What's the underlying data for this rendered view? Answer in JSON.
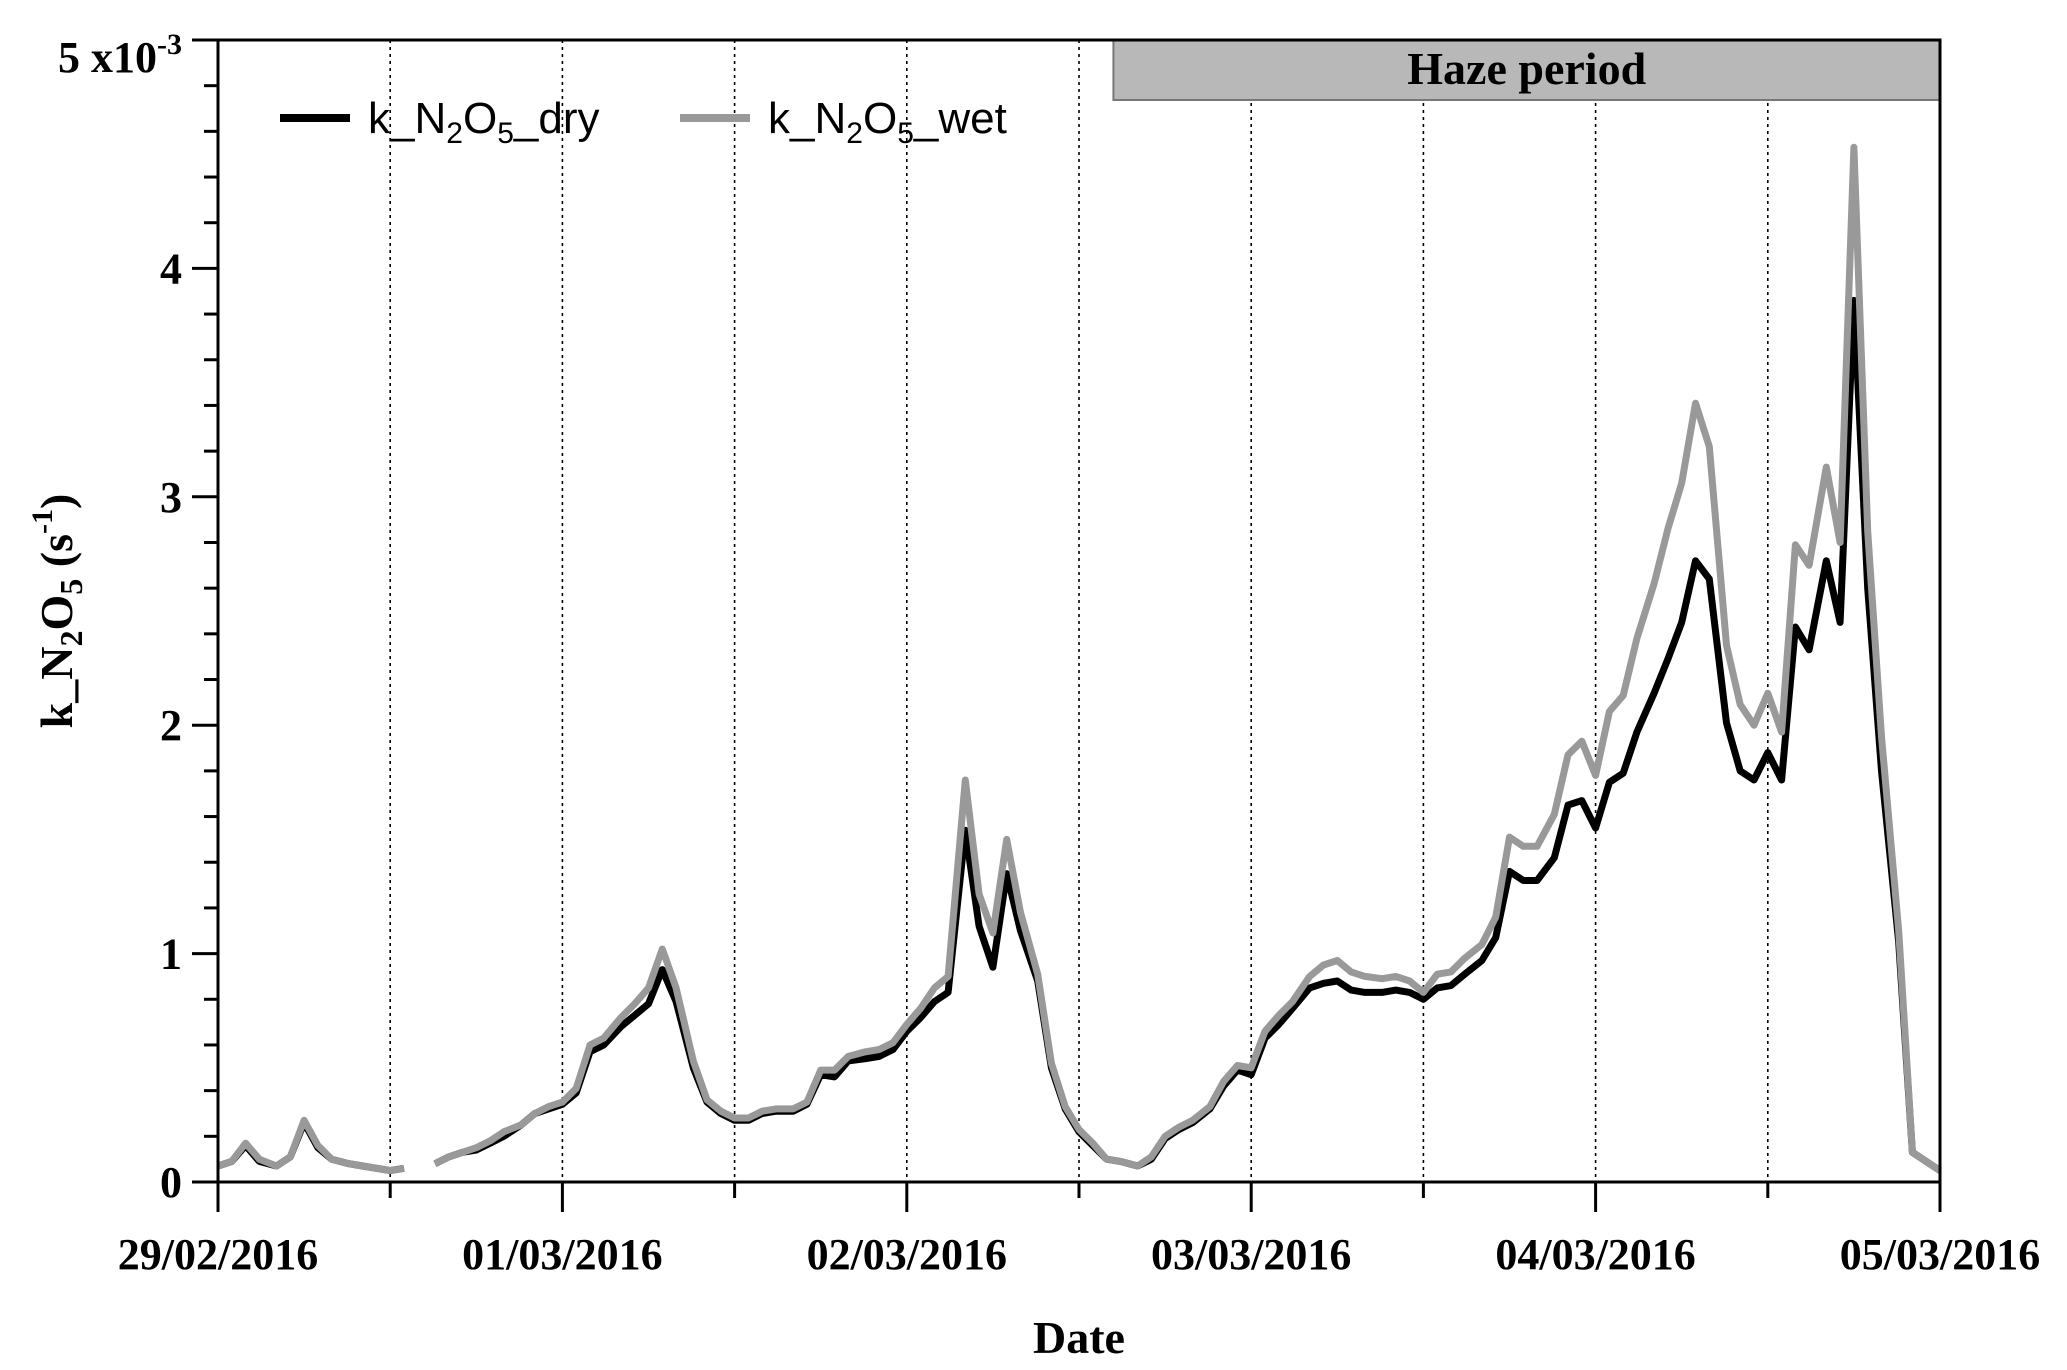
{
  "chart_data": {
    "type": "line",
    "title": "",
    "xlabel": "Date",
    "ylabel": "k_N2O5 (s-1)",
    "y_scale_label": "x10-3",
    "x_tick_labels": [
      "29/02/2016",
      "01/03/2016",
      "02/03/2016",
      "03/03/2016",
      "04/03/2016",
      "05/03/2016"
    ],
    "xlim_days": [
      0,
      5
    ],
    "y_ticks": [
      0,
      1,
      2,
      3,
      4,
      5
    ],
    "ylim": [
      0,
      5
    ],
    "grid": "dotted vertical lines every 12 hours",
    "legend_position": "top-left",
    "annotation": {
      "label": "Haze period",
      "start_day": 2.6,
      "end_day": 5.0
    },
    "series": [
      {
        "name": "k_N2O5_dry",
        "color": "#000000",
        "points": [
          [
            0.0,
            0.07
          ],
          [
            0.04,
            0.09
          ],
          [
            0.08,
            0.16
          ],
          [
            0.12,
            0.09
          ],
          [
            0.17,
            0.07
          ],
          [
            0.21,
            0.11
          ],
          [
            0.25,
            0.26
          ],
          [
            0.29,
            0.15
          ],
          [
            0.33,
            0.1
          ],
          [
            0.38,
            0.08
          ],
          [
            0.42,
            0.07
          ],
          [
            0.46,
            0.06
          ],
          [
            0.5,
            0.05
          ],
          [
            0.54,
            0.06
          ],
          null,
          [
            0.63,
            0.08
          ],
          [
            0.67,
            0.11
          ],
          [
            0.71,
            0.13
          ],
          [
            0.75,
            0.14
          ],
          [
            0.79,
            0.17
          ],
          [
            0.83,
            0.2
          ],
          [
            0.88,
            0.25
          ],
          [
            0.92,
            0.3
          ],
          [
            0.96,
            0.32
          ],
          [
            1.0,
            0.34
          ],
          [
            1.04,
            0.39
          ],
          [
            1.08,
            0.57
          ],
          [
            1.12,
            0.6
          ],
          [
            1.17,
            0.68
          ],
          [
            1.21,
            0.73
          ],
          [
            1.25,
            0.78
          ],
          [
            1.29,
            0.93
          ],
          [
            1.33,
            0.79
          ],
          [
            1.38,
            0.5
          ],
          [
            1.42,
            0.35
          ],
          [
            1.46,
            0.3
          ],
          [
            1.5,
            0.27
          ],
          [
            1.54,
            0.27
          ],
          [
            1.58,
            0.3
          ],
          [
            1.62,
            0.31
          ],
          [
            1.67,
            0.31
          ],
          [
            1.71,
            0.34
          ],
          [
            1.75,
            0.47
          ],
          [
            1.79,
            0.46
          ],
          [
            1.83,
            0.53
          ],
          [
            1.88,
            0.54
          ],
          [
            1.92,
            0.55
          ],
          [
            1.96,
            0.58
          ],
          [
            2.0,
            0.66
          ],
          [
            2.04,
            0.72
          ],
          [
            2.08,
            0.79
          ],
          [
            2.12,
            0.83
          ],
          [
            2.17,
            1.54
          ],
          [
            2.21,
            1.12
          ],
          [
            2.25,
            0.94
          ],
          [
            2.29,
            1.35
          ],
          [
            2.33,
            1.1
          ],
          [
            2.38,
            0.88
          ],
          [
            2.42,
            0.5
          ],
          [
            2.46,
            0.32
          ],
          [
            2.5,
            0.22
          ],
          [
            2.54,
            0.16
          ],
          [
            2.58,
            0.1
          ],
          [
            2.62,
            0.09
          ],
          [
            2.67,
            0.07
          ],
          [
            2.71,
            0.1
          ],
          [
            2.75,
            0.19
          ],
          [
            2.79,
            0.23
          ],
          [
            2.83,
            0.26
          ],
          [
            2.88,
            0.32
          ],
          [
            2.92,
            0.42
          ],
          [
            2.96,
            0.49
          ],
          [
            3.0,
            0.47
          ],
          [
            3.04,
            0.63
          ],
          [
            3.08,
            0.69
          ],
          [
            3.12,
            0.76
          ],
          [
            3.17,
            0.85
          ],
          [
            3.21,
            0.87
          ],
          [
            3.25,
            0.88
          ],
          [
            3.29,
            0.84
          ],
          [
            3.33,
            0.83
          ],
          [
            3.38,
            0.83
          ],
          [
            3.42,
            0.84
          ],
          [
            3.46,
            0.83
          ],
          [
            3.5,
            0.8
          ],
          [
            3.54,
            0.85
          ],
          [
            3.58,
            0.86
          ],
          [
            3.62,
            0.91
          ],
          [
            3.67,
            0.97
          ],
          [
            3.71,
            1.07
          ],
          [
            3.75,
            1.36
          ],
          [
            3.79,
            1.32
          ],
          [
            3.83,
            1.32
          ],
          [
            3.88,
            1.42
          ],
          [
            3.92,
            1.65
          ],
          [
            3.96,
            1.67
          ],
          [
            4.0,
            1.55
          ],
          [
            4.04,
            1.75
          ],
          [
            4.08,
            1.79
          ],
          [
            4.12,
            1.97
          ],
          [
            4.17,
            2.14
          ],
          [
            4.21,
            2.29
          ],
          [
            4.25,
            2.45
          ],
          [
            4.29,
            2.72
          ],
          [
            4.33,
            2.64
          ],
          [
            4.38,
            2.01
          ],
          [
            4.42,
            1.8
          ],
          [
            4.46,
            1.76
          ],
          [
            4.5,
            1.88
          ],
          [
            4.54,
            1.76
          ],
          [
            4.58,
            2.43
          ],
          [
            4.62,
            2.33
          ],
          [
            4.67,
            2.72
          ],
          [
            4.71,
            2.45
          ],
          [
            4.75,
            3.86
          ],
          [
            4.79,
            2.6
          ],
          [
            4.83,
            1.8
          ],
          [
            4.88,
            1.05
          ],
          [
            4.92,
            0.13
          ],
          [
            4.96,
            0.09
          ],
          [
            5.0,
            0.05
          ]
        ]
      },
      {
        "name": "k_N2O5_wet",
        "color": "#999999",
        "points": [
          [
            0.0,
            0.07
          ],
          [
            0.04,
            0.09
          ],
          [
            0.08,
            0.17
          ],
          [
            0.12,
            0.1
          ],
          [
            0.17,
            0.07
          ],
          [
            0.21,
            0.11
          ],
          [
            0.25,
            0.27
          ],
          [
            0.29,
            0.16
          ],
          [
            0.33,
            0.1
          ],
          [
            0.38,
            0.08
          ],
          [
            0.42,
            0.07
          ],
          [
            0.46,
            0.06
          ],
          [
            0.5,
            0.05
          ],
          [
            0.54,
            0.06
          ],
          null,
          [
            0.63,
            0.08
          ],
          [
            0.67,
            0.11
          ],
          [
            0.71,
            0.13
          ],
          [
            0.75,
            0.15
          ],
          [
            0.79,
            0.18
          ],
          [
            0.83,
            0.22
          ],
          [
            0.88,
            0.25
          ],
          [
            0.92,
            0.3
          ],
          [
            0.96,
            0.33
          ],
          [
            1.0,
            0.35
          ],
          [
            1.04,
            0.41
          ],
          [
            1.08,
            0.6
          ],
          [
            1.12,
            0.63
          ],
          [
            1.17,
            0.72
          ],
          [
            1.21,
            0.78
          ],
          [
            1.25,
            0.85
          ],
          [
            1.29,
            1.02
          ],
          [
            1.33,
            0.85
          ],
          [
            1.38,
            0.53
          ],
          [
            1.42,
            0.36
          ],
          [
            1.46,
            0.31
          ],
          [
            1.5,
            0.28
          ],
          [
            1.54,
            0.28
          ],
          [
            1.58,
            0.31
          ],
          [
            1.62,
            0.32
          ],
          [
            1.67,
            0.32
          ],
          [
            1.71,
            0.35
          ],
          [
            1.75,
            0.49
          ],
          [
            1.79,
            0.49
          ],
          [
            1.83,
            0.55
          ],
          [
            1.88,
            0.57
          ],
          [
            1.92,
            0.58
          ],
          [
            1.96,
            0.61
          ],
          [
            2.0,
            0.69
          ],
          [
            2.04,
            0.76
          ],
          [
            2.08,
            0.85
          ],
          [
            2.12,
            0.9
          ],
          [
            2.17,
            1.76
          ],
          [
            2.21,
            1.26
          ],
          [
            2.25,
            1.09
          ],
          [
            2.29,
            1.5
          ],
          [
            2.33,
            1.18
          ],
          [
            2.38,
            0.91
          ],
          [
            2.42,
            0.52
          ],
          [
            2.46,
            0.33
          ],
          [
            2.5,
            0.23
          ],
          [
            2.54,
            0.17
          ],
          [
            2.58,
            0.1
          ],
          [
            2.62,
            0.09
          ],
          [
            2.67,
            0.07
          ],
          [
            2.71,
            0.11
          ],
          [
            2.75,
            0.2
          ],
          [
            2.79,
            0.24
          ],
          [
            2.83,
            0.27
          ],
          [
            2.88,
            0.33
          ],
          [
            2.92,
            0.44
          ],
          [
            2.96,
            0.51
          ],
          [
            3.0,
            0.5
          ],
          [
            3.04,
            0.66
          ],
          [
            3.08,
            0.73
          ],
          [
            3.12,
            0.79
          ],
          [
            3.17,
            0.9
          ],
          [
            3.21,
            0.95
          ],
          [
            3.25,
            0.97
          ],
          [
            3.29,
            0.92
          ],
          [
            3.33,
            0.9
          ],
          [
            3.38,
            0.89
          ],
          [
            3.42,
            0.9
          ],
          [
            3.46,
            0.88
          ],
          [
            3.5,
            0.83
          ],
          [
            3.54,
            0.91
          ],
          [
            3.58,
            0.92
          ],
          [
            3.62,
            0.98
          ],
          [
            3.67,
            1.04
          ],
          [
            3.71,
            1.16
          ],
          [
            3.75,
            1.51
          ],
          [
            3.79,
            1.47
          ],
          [
            3.83,
            1.47
          ],
          [
            3.88,
            1.61
          ],
          [
            3.92,
            1.87
          ],
          [
            3.96,
            1.93
          ],
          [
            4.0,
            1.78
          ],
          [
            4.04,
            2.06
          ],
          [
            4.08,
            2.13
          ],
          [
            4.12,
            2.38
          ],
          [
            4.17,
            2.62
          ],
          [
            4.21,
            2.86
          ],
          [
            4.25,
            3.06
          ],
          [
            4.29,
            3.41
          ],
          [
            4.33,
            3.22
          ],
          [
            4.38,
            2.35
          ],
          [
            4.42,
            2.09
          ],
          [
            4.46,
            2.0
          ],
          [
            4.5,
            2.14
          ],
          [
            4.54,
            1.97
          ],
          [
            4.58,
            2.79
          ],
          [
            4.62,
            2.7
          ],
          [
            4.67,
            3.13
          ],
          [
            4.71,
            2.8
          ],
          [
            4.75,
            4.53
          ],
          [
            4.79,
            2.85
          ],
          [
            4.83,
            1.95
          ],
          [
            4.88,
            1.1
          ],
          [
            4.92,
            0.13
          ],
          [
            4.96,
            0.09
          ],
          [
            5.0,
            0.05
          ]
        ]
      }
    ]
  }
}
